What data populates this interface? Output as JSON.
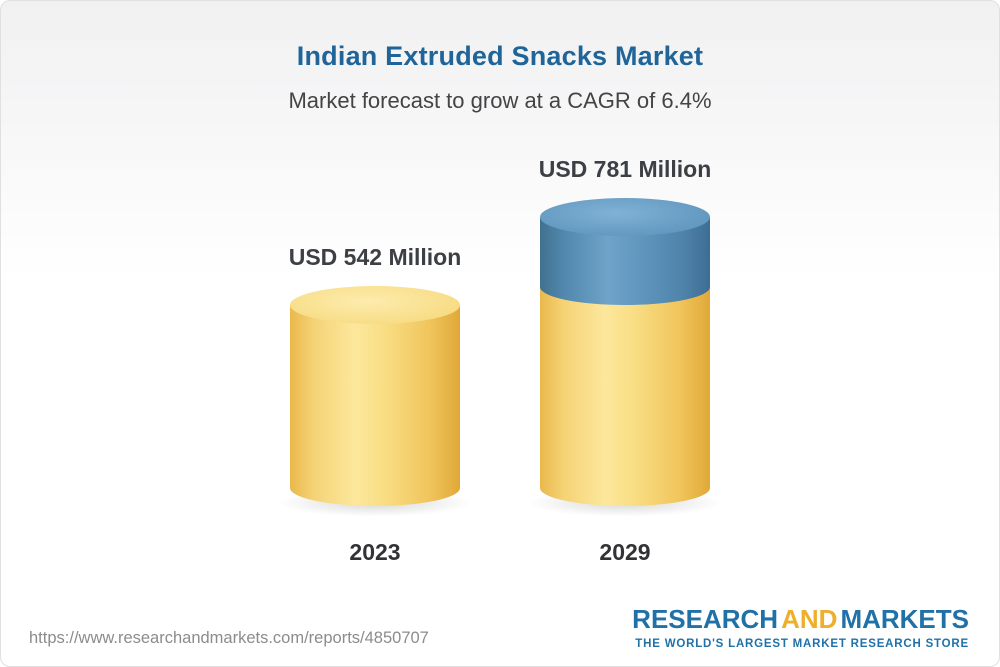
{
  "header": {
    "title": "Indian Extruded Snacks Market",
    "subtitle": "Market forecast to grow at a CAGR of 6.4%"
  },
  "chart_data": {
    "type": "bar",
    "title": "Indian Extruded Snacks Market",
    "subtitle": "Market forecast to grow at a CAGR of 6.4%",
    "cagr_percent": 6.4,
    "unit": "USD Million",
    "categories": [
      "2023",
      "2029"
    ],
    "values": [
      542,
      781
    ],
    "value_labels": [
      "USD 542 Million",
      "USD 781 Million"
    ],
    "series_note": "2029 bar shows 2023 base in yellow plus growth segment in blue",
    "colors": {
      "base": "#f5ce63",
      "growth": "#5e94bc",
      "title": "#1f6599"
    },
    "legend": "none",
    "grid": "off"
  },
  "footer": {
    "url": "https://www.researchandmarkets.com/reports/4850707",
    "logo": {
      "research": "RESEARCH",
      "and": "AND",
      "markets": "MARKETS",
      "tagline": "THE WORLD'S LARGEST MARKET RESEARCH STORE"
    }
  }
}
